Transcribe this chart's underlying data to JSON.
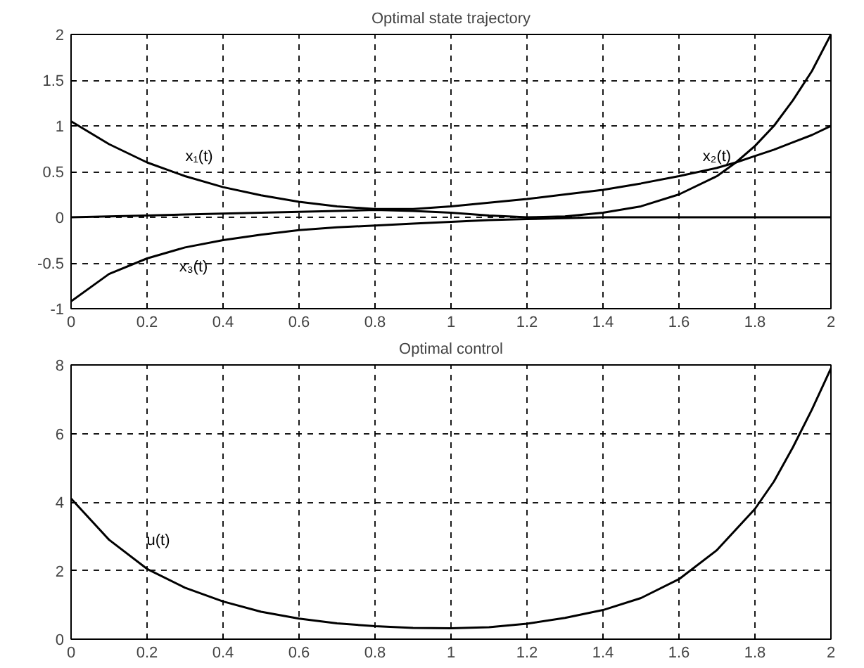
{
  "chart_data": [
    {
      "type": "line",
      "title": "Optimal state trajectory",
      "x": [
        0,
        0.1,
        0.2,
        0.3,
        0.4,
        0.5,
        0.6,
        0.7,
        0.8,
        0.9,
        1.0,
        1.1,
        1.2,
        1.3,
        1.4,
        1.5,
        1.6,
        1.7,
        1.75,
        1.8,
        1.85,
        1.9,
        1.95,
        2.0
      ],
      "series": [
        {
          "name": "x₁(t)",
          "color": "#000000",
          "values": [
            1.05,
            0.8,
            0.6,
            0.45,
            0.33,
            0.24,
            0.17,
            0.12,
            0.09,
            0.09,
            0.12,
            0.16,
            0.2,
            0.25,
            0.3,
            0.37,
            0.45,
            0.54,
            0.6,
            0.67,
            0.74,
            0.82,
            0.9,
            1.0
          ]
        },
        {
          "name": "x₂(t)",
          "color": "#000000",
          "values": [
            0.0,
            0.01,
            0.02,
            0.03,
            0.04,
            0.05,
            0.06,
            0.07,
            0.08,
            0.07,
            0.05,
            0.02,
            0.0,
            0.01,
            0.05,
            0.12,
            0.25,
            0.45,
            0.6,
            0.78,
            1.0,
            1.28,
            1.6,
            2.0
          ]
        },
        {
          "name": "x₃(t)",
          "color": "#000000",
          "values": [
            -0.92,
            -0.62,
            -0.45,
            -0.33,
            -0.25,
            -0.19,
            -0.14,
            -0.11,
            -0.09,
            -0.07,
            -0.05,
            -0.03,
            -0.02,
            -0.01,
            0.0,
            0.0,
            0.0,
            0.0,
            0.0,
            0.0,
            0.0,
            0.0,
            0.0,
            0.0
          ]
        }
      ],
      "xlim": [
        0,
        2
      ],
      "xticks": [
        0,
        0.2,
        0.4,
        0.6,
        0.8,
        1,
        1.2,
        1.4,
        1.6,
        1.8,
        2
      ],
      "ylim": [
        -1,
        2
      ],
      "yticks": [
        -1,
        -0.5,
        0,
        0.5,
        1,
        1.5,
        2
      ],
      "grid": true,
      "line_style": "solid"
    },
    {
      "type": "line",
      "title": "Optimal control",
      "x": [
        0,
        0.1,
        0.2,
        0.3,
        0.4,
        0.5,
        0.6,
        0.7,
        0.8,
        0.9,
        1.0,
        1.1,
        1.2,
        1.3,
        1.4,
        1.5,
        1.6,
        1.7,
        1.8,
        1.85,
        1.9,
        1.95,
        2.0
      ],
      "series": [
        {
          "name": "u(t)",
          "color": "#000000",
          "values": [
            4.1,
            2.9,
            2.05,
            1.5,
            1.1,
            0.8,
            0.6,
            0.46,
            0.38,
            0.33,
            0.32,
            0.35,
            0.45,
            0.62,
            0.85,
            1.2,
            1.75,
            2.6,
            3.8,
            4.6,
            5.6,
            6.7,
            7.9
          ]
        }
      ],
      "xlim": [
        0,
        2
      ],
      "xticks": [
        0,
        0.2,
        0.4,
        0.6,
        0.8,
        1,
        1.2,
        1.4,
        1.6,
        1.8,
        2
      ],
      "ylim": [
        0,
        8
      ],
      "yticks": [
        0,
        2,
        4,
        6,
        8
      ],
      "grid": true,
      "line_style": "solid"
    }
  ]
}
